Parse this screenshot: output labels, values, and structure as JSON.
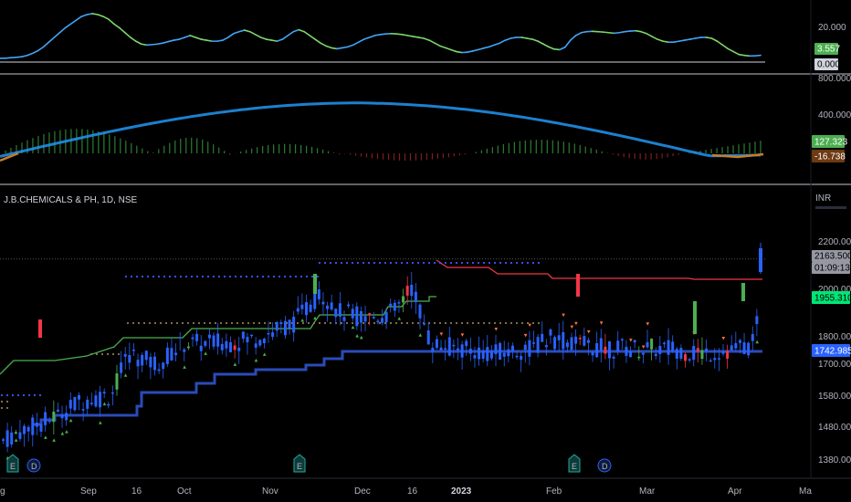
{
  "chart_data": {
    "type": "candlestick",
    "symbol": {
      "name": "J.B.CHEMICALS & PH",
      "interval": "1D",
      "exchange": "NSE"
    },
    "currency": "INR",
    "x_axis": {
      "labels": [
        "Sep",
        "16",
        "Oct",
        "Nov",
        "Dec",
        "16",
        "2023",
        "Feb",
        "Mar",
        "Apr",
        "Ma"
      ]
    },
    "panes": {
      "oscillator": {
        "ticks": [
          "20.000"
        ],
        "value_badges": [
          "3.557",
          "0.000"
        ],
        "colors": {
          "rising": "#42a5f5",
          "falling": "#7cd66b"
        },
        "series": [
          2,
          2,
          2.3,
          2.5,
          2.8,
          3.5,
          4.6,
          6,
          8,
          10.5,
          13,
          15.5,
          18,
          20,
          22,
          24,
          25,
          25.5,
          25,
          24,
          22.5,
          20,
          18,
          15.5,
          13,
          11,
          9.5,
          9,
          9.2,
          9.5,
          10,
          10.8,
          11.5,
          12,
          13,
          14,
          13,
          12,
          11.5,
          11,
          11,
          11.5,
          13,
          15,
          16,
          16.8,
          16,
          14.5,
          13,
          12,
          11.5,
          11,
          12,
          14,
          16,
          17,
          16,
          14,
          12,
          10,
          8.5,
          7.5,
          7,
          7.5,
          8,
          9,
          10.5,
          12,
          13,
          14,
          14.5,
          14.8,
          15,
          14.8,
          14.5,
          14,
          13.5,
          13,
          12.5,
          11.5,
          10,
          8.5,
          7.5,
          6.5,
          5.5,
          5,
          5.2,
          5.8,
          6.5,
          7.3,
          8,
          9,
          10,
          11.5,
          12.5,
          13,
          13,
          12.5,
          12,
          11,
          9.5,
          8,
          6.8,
          6.5,
          7.8,
          11.5,
          14,
          15.5,
          16,
          16.2,
          16,
          15.8,
          15.5,
          15.2,
          15.5,
          16,
          16.3,
          16.5,
          16,
          15,
          13.5,
          12,
          11,
          10.5,
          10.5,
          11,
          11.5,
          12,
          12.5,
          13,
          13,
          12.5,
          11,
          9,
          7,
          5.5,
          4,
          3.5,
          3.2,
          3.3,
          3.557
        ]
      },
      "macd": {
        "ticks": [
          "800.000",
          "400.000"
        ],
        "value_badges": [
          "127.323",
          "-16.738"
        ],
        "line_color": "#2196f3",
        "signal_start": -30,
        "signal_peak": 480,
        "signal_end": -16.738
      },
      "price": {
        "ticks": [
          "2200.000",
          "2000.000",
          "1800.000",
          "1700.000",
          "1580.000",
          "1480.000",
          "1380.000"
        ],
        "value_badges": [
          "2163.500",
          "01:09:13",
          "1955.310",
          "1742.985"
        ],
        "event_markers": [
          "E",
          "D",
          "E",
          "E",
          "D"
        ],
        "colors": {
          "candle": "#2962ff",
          "down_candle": "#f23645",
          "up_candle": "#4caf50",
          "trail_support": "#4caf50",
          "trail_resistance": "#f23645",
          "long_stop": "#2a4bb8"
        }
      }
    }
  }
}
